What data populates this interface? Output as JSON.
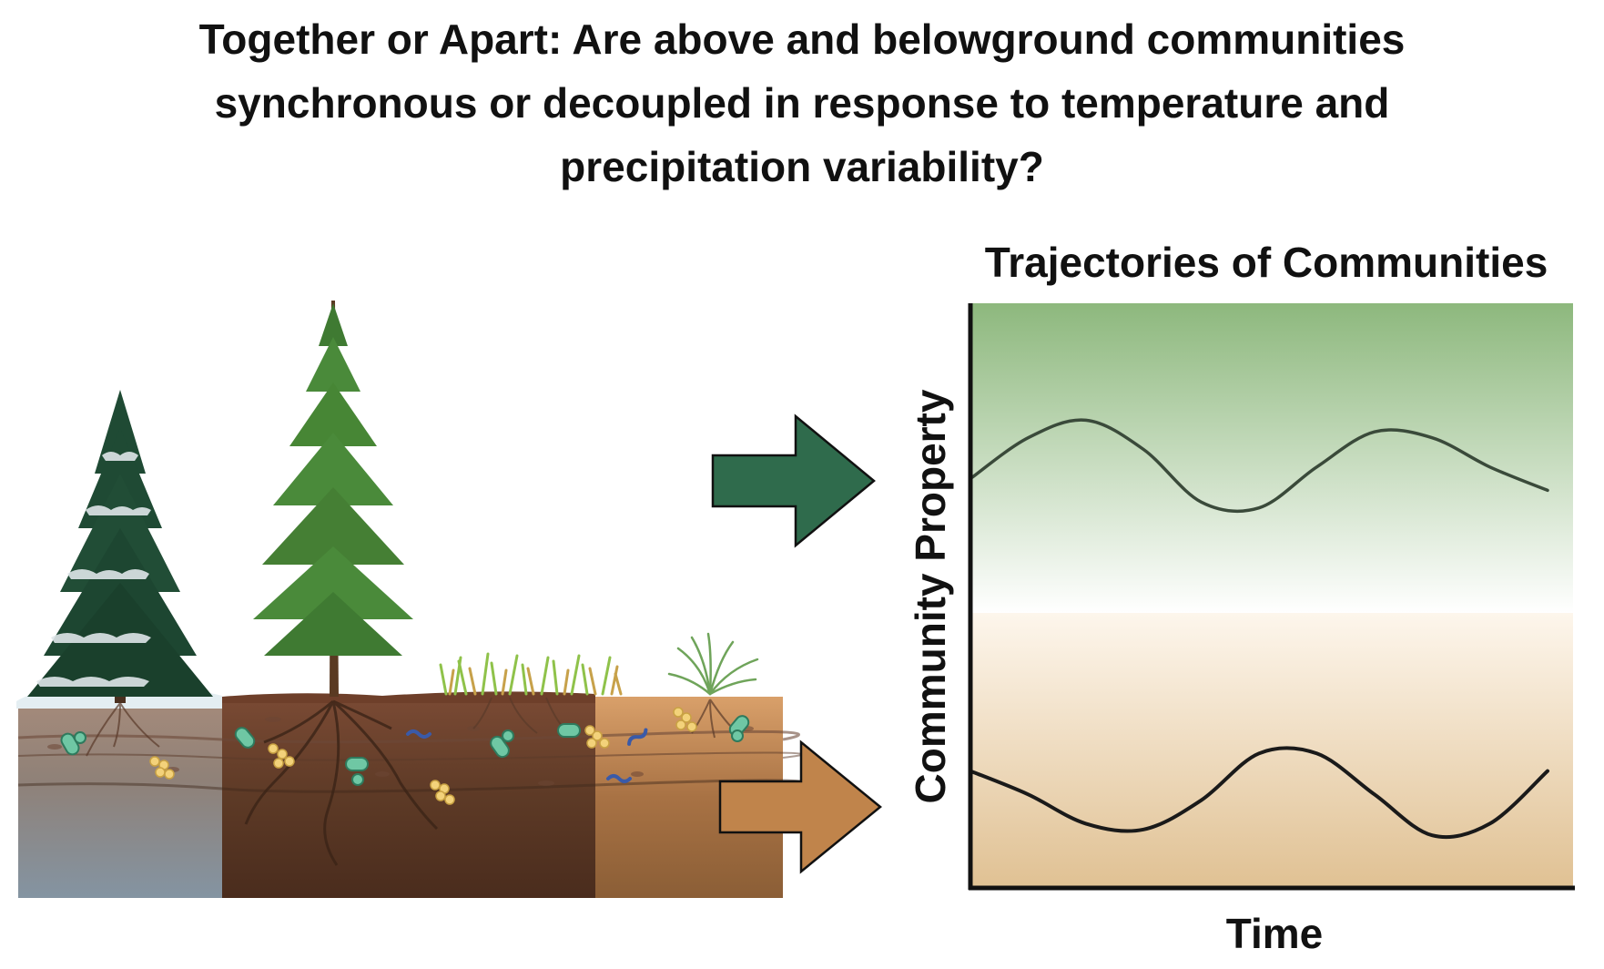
{
  "title_lines": [
    "Together or Apart: Are above and belowground communities",
    "synchronous or decoupled in response to temperature and",
    "precipitation variability?"
  ],
  "panels": {
    "aboveground_arrow_color": "#2f6b4c",
    "belowground_arrow_color": "#c0844b",
    "icons": [
      "snowy-conifer-icon",
      "tall-pine-icon",
      "grass-icon",
      "bunchgrass-icon",
      "soil-profile-icon",
      "microbe-icon",
      "right-arrow-icon"
    ]
  },
  "chart_data": {
    "type": "line",
    "title": "Trajectories of Communities",
    "xlabel": "Time",
    "ylabel": "Community Property",
    "x_ticks": false,
    "y_ticks": false,
    "background_bands": [
      {
        "region": "upper",
        "color_top": "#8db87d",
        "color_bottom": "#ffffff"
      },
      {
        "region": "lower",
        "color_top": "#fdf6ec",
        "color_bottom": "#e0c193"
      }
    ],
    "x": [
      0,
      1,
      2,
      3,
      4,
      5,
      6,
      7,
      8,
      9,
      10
    ],
    "series": [
      {
        "values": [
          7.0,
          7.7,
          8.0,
          7.5,
          6.6,
          6.5,
          7.2,
          7.8,
          7.7,
          7.2,
          6.8
        ],
        "color": "#3a4a3a"
      },
      {
        "values": [
          2.0,
          1.6,
          1.1,
          1.0,
          1.5,
          2.3,
          2.3,
          1.6,
          0.9,
          1.1,
          2.0
        ],
        "color": "#1a1a1a"
      }
    ],
    "xlim": [
      0,
      10
    ],
    "ylim": [
      0,
      10
    ]
  }
}
